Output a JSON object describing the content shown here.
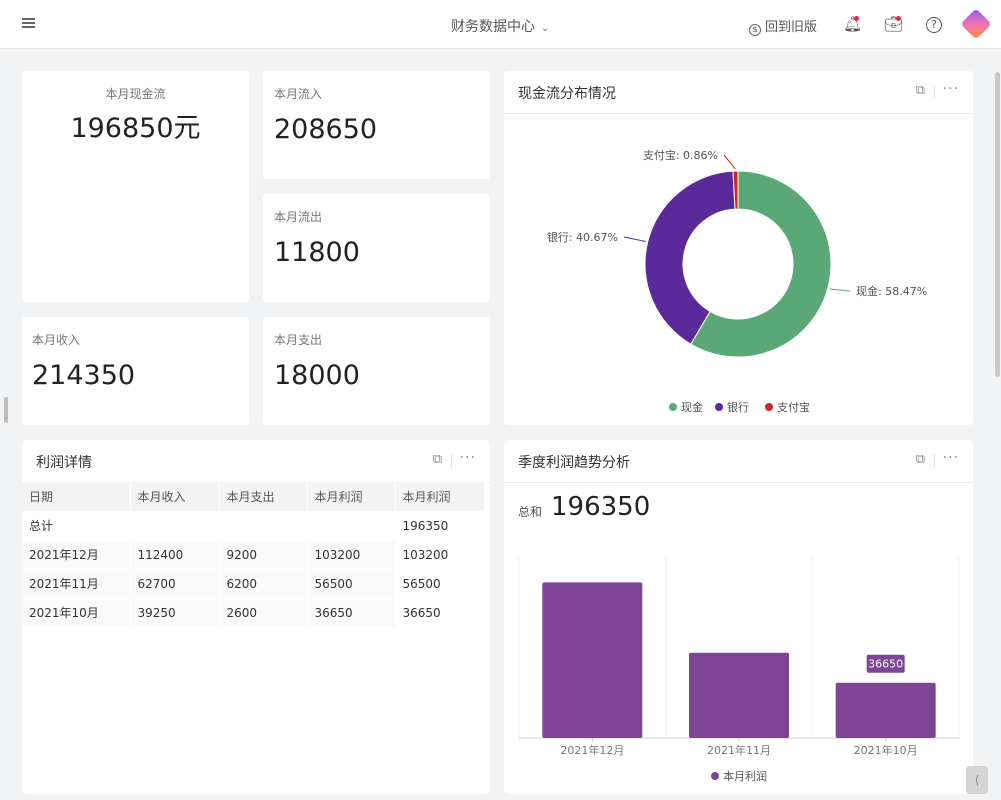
{
  "header": {
    "title": "财务数据中心",
    "back_label": "回到旧版"
  },
  "stats": {
    "cashflow": {
      "label": "本月现金流",
      "value": "196850元"
    },
    "inflow": {
      "label": "本月流入",
      "value": "208650"
    },
    "outflow": {
      "label": "本月流出",
      "value": "11800"
    },
    "income": {
      "label": "本月收入",
      "value": "214350"
    },
    "expense": {
      "label": "本月支出",
      "value": "18000"
    }
  },
  "pie_card": {
    "title": "现金流分布情况"
  },
  "profit_table": {
    "title": "利润详情",
    "columns": [
      "日期",
      "本月收入",
      "本月支出",
      "本月利润",
      "本月利润"
    ],
    "total": {
      "label": "总计",
      "value": "196350"
    },
    "rows": [
      [
        "2021年12月",
        "112400",
        "9200",
        "103200",
        "103200"
      ],
      [
        "2021年11月",
        "62700",
        "6200",
        "56500",
        "56500"
      ],
      [
        "2021年10月",
        "39250",
        "2600",
        "36650",
        "36650"
      ]
    ]
  },
  "bar_card": {
    "title": "季度利润趋势分析",
    "sum_label": "总和",
    "sum_value": "196350",
    "tooltip": "36650"
  },
  "chart_data": [
    {
      "type": "pie",
      "donut": true,
      "slices": [
        {
          "name": "现金",
          "value": 58.47,
          "label": "现金: 58.47%",
          "color": "#5aa876"
        },
        {
          "name": "银行",
          "value": 40.67,
          "label": "银行: 40.67%",
          "color": "#5b2a9a"
        },
        {
          "name": "支付宝",
          "value": 0.86,
          "label": "支付宝: 0.86%",
          "color": "#c62828"
        }
      ],
      "legend": "bottom"
    },
    {
      "type": "bar",
      "categories": [
        "2021年12月",
        "2021年11月",
        "2021年10月"
      ],
      "series": [
        {
          "name": "本月利润",
          "values": [
            103200,
            56500,
            36650
          ],
          "color": "#7e4496"
        }
      ],
      "ylim": [
        0,
        120000
      ],
      "legend": "bottom",
      "grid": "vertical"
    }
  ]
}
